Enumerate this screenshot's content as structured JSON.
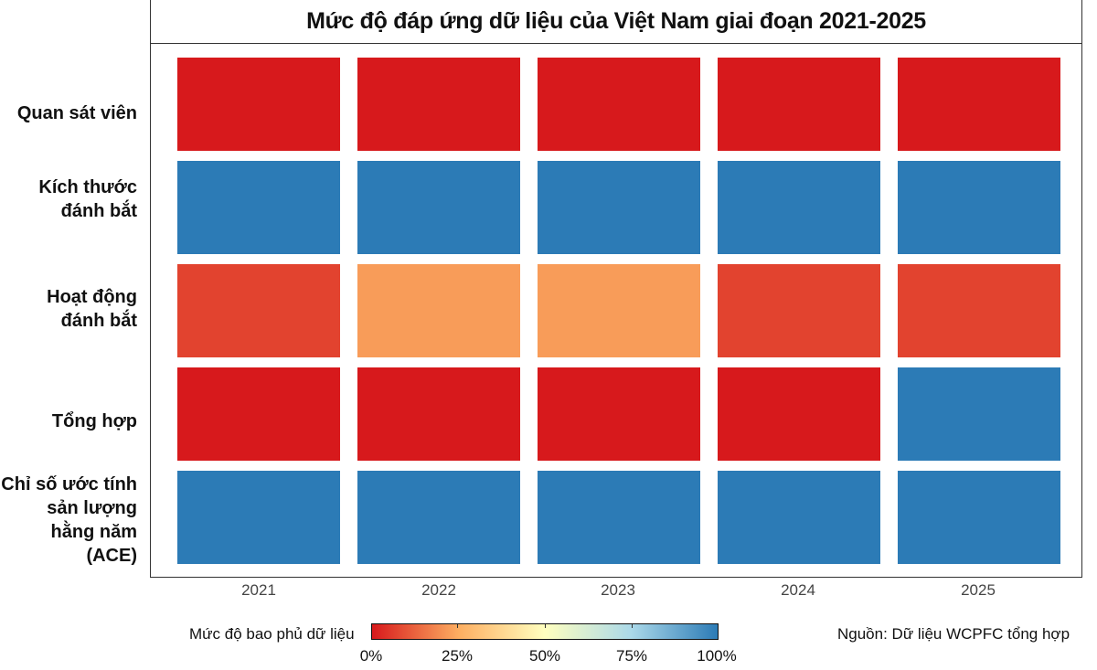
{
  "chart_data": {
    "type": "heatmap",
    "title": "Mức độ đáp ứng dữ liệu của Việt Nam giai đoạn 2021-2025",
    "x": [
      "2021",
      "2022",
      "2023",
      "2024",
      "2025"
    ],
    "y": [
      "Quan sát viên",
      "Kích thước\nđánh bắt",
      "Hoạt động\nđánh bắt",
      "Tổng hợp",
      "Chỉ số ước tính\nsản lượng\nhằng năm (ACE)"
    ],
    "values": [
      [
        0,
        0,
        0,
        0,
        0
      ],
      [
        100,
        100,
        100,
        100,
        100
      ],
      [
        7,
        22,
        22,
        7,
        7
      ],
      [
        0,
        0,
        0,
        0,
        100
      ],
      [
        100,
        100,
        100,
        100,
        100
      ]
    ],
    "value_unit": "%",
    "colorbar": {
      "title": "Mức độ bao phủ dữ liệu",
      "ticks": [
        "0%",
        "25%",
        "50%",
        "75%",
        "100%"
      ],
      "range": [
        0,
        100
      ],
      "colors": [
        "#d7191c",
        "#fdae61",
        "#ffffbf",
        "#abd9e9",
        "#2c7bb6"
      ]
    },
    "grid": false
  },
  "source_note": "Nguồn: Dữ liệu WCPFC tổng hợp"
}
